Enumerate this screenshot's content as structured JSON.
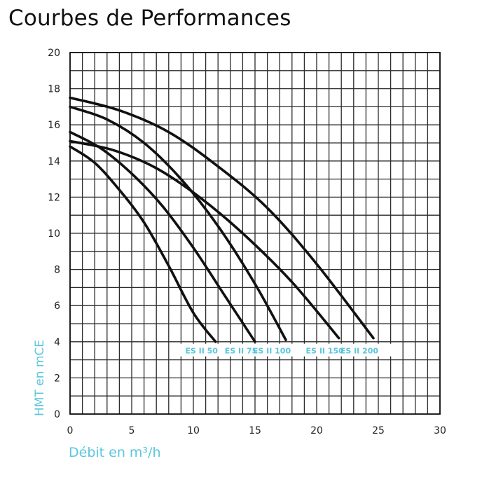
{
  "title": "Courbes de Performances",
  "chart_data": {
    "type": "line",
    "title": "Courbes de Performances",
    "xlabel": "Débit en m³/h",
    "ylabel": "HMT en mCE",
    "xlim": [
      0,
      30
    ],
    "ylim": [
      0,
      20
    ],
    "xticks": [
      0,
      5,
      10,
      15,
      20,
      25,
      30
    ],
    "yticks": [
      0,
      2,
      4,
      6,
      8,
      10,
      12,
      14,
      16,
      18,
      20
    ],
    "grid": true,
    "label_color": "#5bc6dc",
    "line_color": "#111111",
    "series": [
      {
        "name": "ES II 50",
        "x": [
          0,
          2,
          4,
          6,
          8,
          10,
          11.8
        ],
        "y": [
          14.8,
          13.9,
          12.4,
          10.6,
          8.2,
          5.6,
          4.0
        ]
      },
      {
        "name": "ES II 75",
        "x": [
          0,
          2.5,
          5,
          7.5,
          10,
          12.5,
          15
        ],
        "y": [
          15.6,
          14.7,
          13.3,
          11.5,
          9.2,
          6.6,
          4.0
        ]
      },
      {
        "name": "ES II 100",
        "x": [
          0,
          3,
          6,
          9,
          12,
          15,
          17.5
        ],
        "y": [
          17.0,
          16.3,
          15.0,
          13.0,
          10.4,
          7.2,
          4.1
        ]
      },
      {
        "name": "ES II 150",
        "x": [
          0,
          3.5,
          7,
          10.5,
          14,
          18,
          21.8
        ],
        "y": [
          15.1,
          14.6,
          13.6,
          12.0,
          10.0,
          7.3,
          4.2
        ]
      },
      {
        "name": "ES II 200",
        "x": [
          0,
          4,
          8,
          12,
          16,
          20,
          24.6
        ],
        "y": [
          17.5,
          16.8,
          15.6,
          13.7,
          11.4,
          8.3,
          4.2
        ]
      }
    ],
    "curve_labels": [
      "ES II 50",
      "ES II 75",
      "ES II 100",
      "ES II 150",
      "ES II 200"
    ]
  }
}
